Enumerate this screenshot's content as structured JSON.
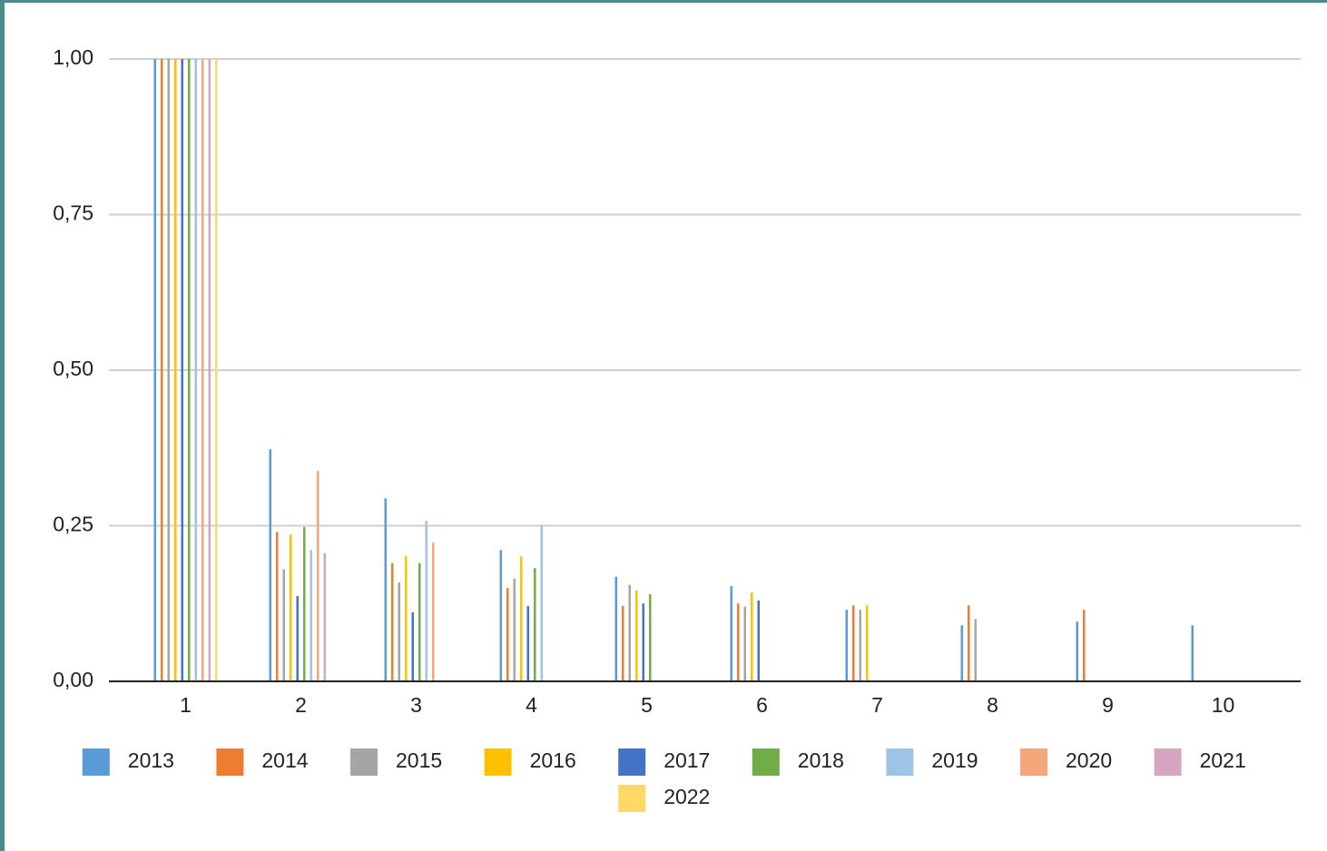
{
  "chart_data": {
    "type": "bar",
    "legend": "bottom",
    "grid": true,
    "categories": [
      "1",
      "2",
      "3",
      "4",
      "5",
      "6",
      "7",
      "8",
      "9",
      "10"
    ],
    "ylim": [
      0,
      1
    ],
    "yticks": [
      {
        "value": 0,
        "label": "0,00"
      },
      {
        "value": 0.25,
        "label": "0,25"
      },
      {
        "value": 0.5,
        "label": "0,50"
      },
      {
        "value": 0.75,
        "label": "0,75"
      },
      {
        "value": 1,
        "label": "1,00"
      }
    ],
    "series": [
      {
        "name": "2013",
        "color": "#5b9bd5",
        "values": [
          1,
          0.373,
          0.294,
          0.211,
          0.168,
          0.153,
          0.115,
          0.09,
          0.096,
          0.09
        ]
      },
      {
        "name": "2014",
        "color": "#ed7d31",
        "values": [
          1,
          0.24,
          0.19,
          0.15,
          0.121,
          0.125,
          0.122,
          0.122,
          0.115,
          null
        ]
      },
      {
        "name": "2015",
        "color": "#a5a5a5",
        "values": [
          1,
          0.18,
          0.159,
          0.165,
          0.155,
          0.12,
          0.115,
          0.1,
          null,
          null
        ]
      },
      {
        "name": "2016",
        "color": "#ffc000",
        "values": [
          1,
          0.236,
          0.201,
          0.201,
          0.146,
          0.143,
          0.122,
          null,
          null,
          null
        ]
      },
      {
        "name": "2017",
        "color": "#4472c4",
        "values": [
          1,
          0.137,
          0.111,
          0.121,
          0.125,
          0.13,
          null,
          null,
          null,
          null
        ]
      },
      {
        "name": "2018",
        "color": "#70ad47",
        "values": [
          1,
          0.248,
          0.19,
          0.182,
          0.14,
          null,
          null,
          null,
          null,
          null
        ]
      },
      {
        "name": "2019",
        "color": "#9dc3e6",
        "values": [
          1,
          0.211,
          0.258,
          0.251,
          null,
          null,
          null,
          null,
          null,
          null
        ]
      },
      {
        "name": "2020",
        "color": "#f4a77a",
        "values": [
          1,
          0.338,
          0.223,
          null,
          null,
          null,
          null,
          null,
          null,
          null
        ]
      },
      {
        "name": "2021",
        "color": "#d5a6bd",
        "values": [
          1,
          0.206,
          null,
          null,
          null,
          null,
          null,
          null,
          null,
          null
        ]
      },
      {
        "name": "2022",
        "color": "#ffd966",
        "values": [
          1,
          null,
          null,
          null,
          null,
          null,
          null,
          null,
          null,
          null
        ]
      }
    ]
  }
}
